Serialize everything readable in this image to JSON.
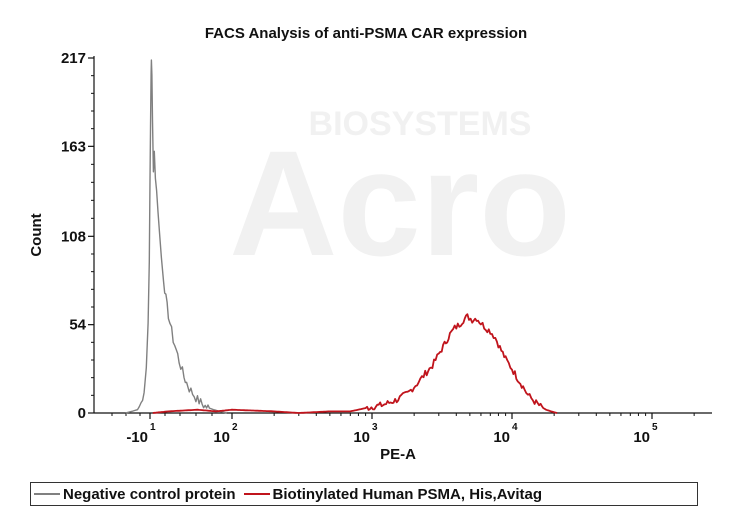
{
  "chart_data": {
    "type": "area",
    "title": "FACS Analysis of anti-PSMA CAR expression",
    "xlabel": "PE-A",
    "ylabel": "Count",
    "ylim": [
      0,
      217
    ],
    "y_ticks": [
      "0",
      "54",
      "108",
      "163",
      "217"
    ],
    "y_tick_values": [
      0,
      54,
      108,
      163,
      217
    ],
    "x_scale": "biexponential",
    "x_ticks": [
      {
        "base": "-10",
        "exp": "1",
        "value": -10
      },
      {
        "base": "10",
        "exp": "2",
        "value": 100
      },
      {
        "base": "10",
        "exp": "3",
        "value": 1000
      },
      {
        "base": "10",
        "exp": "4",
        "value": 10000
      },
      {
        "base": "10",
        "exp": "5",
        "value": 100000
      }
    ],
    "grid": false,
    "legend_position": "bottom",
    "series": [
      {
        "name": "Negative control protein",
        "color": "#808080",
        "points": [
          [
            -40,
            0
          ],
          [
            -30,
            1
          ],
          [
            -22,
            2
          ],
          [
            -18,
            6
          ],
          [
            -15,
            14
          ],
          [
            -13,
            28
          ],
          [
            -11.5,
            55
          ],
          [
            -10.5,
            95
          ],
          [
            -10,
            140
          ],
          [
            -9.5,
            185
          ],
          [
            -9.2,
            208
          ],
          [
            -9,
            217
          ],
          [
            -8.6,
            205
          ],
          [
            -8.2,
            178
          ],
          [
            -7.6,
            150
          ],
          [
            -7,
            160
          ],
          [
            -6.3,
            145
          ],
          [
            -5.6,
            135
          ],
          [
            -4.8,
            125
          ],
          [
            -4,
            110
          ],
          [
            -3,
            95
          ],
          [
            -2,
            82
          ],
          [
            -1,
            70
          ],
          [
            0,
            60
          ],
          [
            2,
            45
          ],
          [
            5,
            32
          ],
          [
            8,
            22
          ],
          [
            12,
            15
          ],
          [
            20,
            8
          ],
          [
            30,
            4
          ],
          [
            45,
            2
          ],
          [
            60,
            1
          ],
          [
            80,
            0
          ]
        ]
      },
      {
        "name": "Biotinylated Human PSMA, His,Avitag",
        "color": "#c0141c",
        "points": [
          [
            -8,
            0
          ],
          [
            0,
            1
          ],
          [
            20,
            2
          ],
          [
            50,
            1
          ],
          [
            100,
            2
          ],
          [
            200,
            1
          ],
          [
            300,
            0
          ],
          [
            500,
            1
          ],
          [
            700,
            1
          ],
          [
            900,
            3
          ],
          [
            1200,
            5
          ],
          [
            1500,
            8
          ],
          [
            1800,
            12
          ],
          [
            2100,
            18
          ],
          [
            2400,
            24
          ],
          [
            2700,
            29
          ],
          [
            3000,
            36
          ],
          [
            3300,
            42
          ],
          [
            3600,
            48
          ],
          [
            3900,
            52
          ],
          [
            4200,
            54
          ],
          [
            4500,
            57
          ],
          [
            4800,
            59
          ],
          [
            5200,
            57
          ],
          [
            5600,
            58
          ],
          [
            6000,
            55
          ],
          [
            6500,
            52
          ],
          [
            7000,
            50
          ],
          [
            7600,
            46
          ],
          [
            8200,
            40
          ],
          [
            9000,
            33
          ],
          [
            10000,
            27
          ],
          [
            11000,
            21
          ],
          [
            12000,
            16
          ],
          [
            13000,
            11
          ],
          [
            14500,
            7
          ],
          [
            16000,
            4
          ],
          [
            17500,
            2
          ],
          [
            19000,
            1
          ],
          [
            21000,
            0
          ]
        ]
      }
    ]
  },
  "legend": {
    "items": [
      {
        "label": "Negative control protein",
        "color": "#808080"
      },
      {
        "label": "Biotinylated Human PSMA, His,Avitag",
        "color": "#c0141c"
      }
    ]
  },
  "watermark": {
    "brand": "Acro",
    "tagline": "BIOSYSTEMS"
  }
}
